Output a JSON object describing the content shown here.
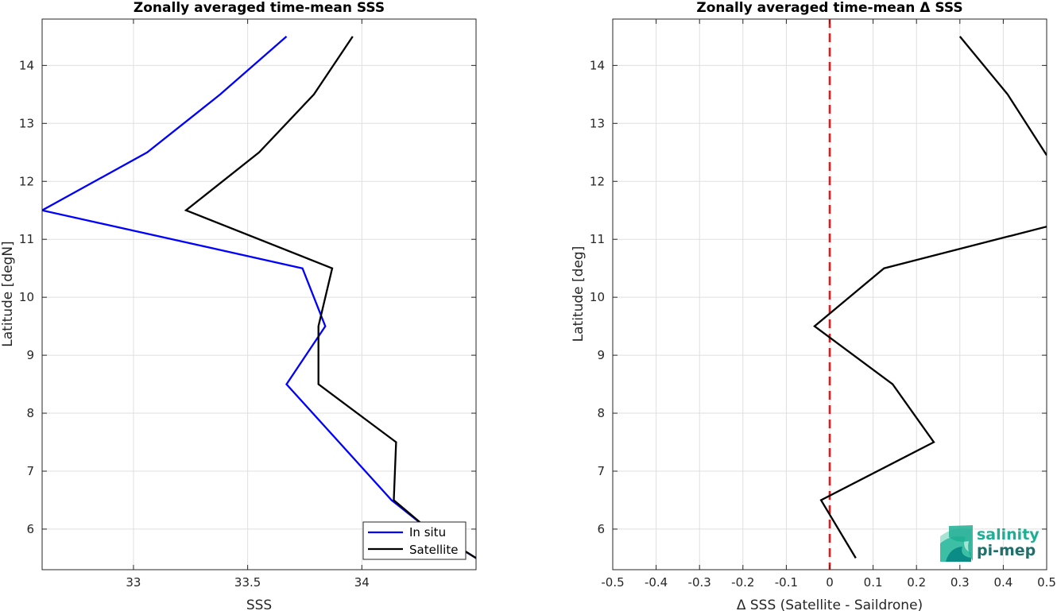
{
  "chart_data": [
    {
      "type": "line",
      "title": "Zonally averaged time-mean SSS",
      "xlabel": "SSS",
      "ylabel": "Latitude [degN]",
      "xlim": [
        32.6,
        34.5
      ],
      "ylim": [
        5.3,
        14.8
      ],
      "xticks": [
        33,
        33.5,
        34
      ],
      "xtick_labels": [
        "33",
        "33.5",
        "34"
      ],
      "yticks": [
        6,
        7,
        8,
        9,
        10,
        11,
        12,
        13,
        14
      ],
      "ytick_labels": [
        "6",
        "7",
        "8",
        "9",
        "10",
        "11",
        "12",
        "13",
        "14"
      ],
      "grid": true,
      "legend_position": "bottom-right",
      "series": [
        {
          "name": "In situ",
          "color": "#0000ff",
          "x": [
            34.5,
            34.29,
            34.13,
            33.9,
            33.67,
            33.84,
            33.74,
            32.6,
            33.06,
            33.38,
            33.67
          ],
          "y": [
            5.5,
            6.0,
            6.5,
            7.5,
            8.5,
            9.5,
            10.5,
            11.5,
            12.5,
            13.5,
            14.5
          ]
        },
        {
          "name": "Satellite",
          "color": "#000000",
          "x": [
            34.5,
            34.26,
            34.14,
            34.15,
            33.81,
            33.81,
            33.87,
            33.23,
            33.55,
            33.79,
            33.96
          ],
          "y": [
            5.5,
            6.1,
            6.5,
            7.5,
            8.5,
            9.5,
            10.5,
            11.5,
            12.5,
            13.5,
            14.5
          ]
        }
      ]
    },
    {
      "type": "line",
      "title": "Zonally averaged time-mean Δ SSS",
      "xlabel": "Δ SSS (Satellite - Saildrone)",
      "ylabel": "Latitude [deg]",
      "xlim": [
        -0.5,
        0.5
      ],
      "ylim": [
        5.3,
        14.8
      ],
      "xticks": [
        -0.5,
        -0.4,
        -0.3,
        -0.2,
        -0.1,
        0,
        0.1,
        0.2,
        0.3,
        0.4,
        0.5
      ],
      "xtick_labels": [
        "-0.5",
        "-0.4",
        "-0.3",
        "-0.2",
        "-0.1",
        "0",
        "0.1",
        "0.2",
        "0.3",
        "0.4",
        "0.5"
      ],
      "yticks": [
        6,
        7,
        8,
        9,
        10,
        11,
        12,
        13,
        14
      ],
      "ytick_labels": [
        "6",
        "7",
        "8",
        "9",
        "10",
        "11",
        "12",
        "13",
        "14"
      ],
      "grid": true,
      "reference_line": {
        "x": 0,
        "color": "#e41a1c",
        "style": "dashed"
      },
      "series": [
        {
          "color": "#000000",
          "segments": [
            {
              "x": [
                0.06,
                -0.02,
                0.24,
                0.145,
                -0.035,
                0.125,
                0.5
              ],
              "y": [
                5.5,
                6.5,
                7.5,
                8.5,
                9.5,
                10.5,
                11.22
              ]
            },
            {
              "x": [
                0.5,
                0.41,
                0.3
              ],
              "y": [
                12.45,
                13.5,
                14.5
              ]
            }
          ]
        }
      ]
    }
  ],
  "logo": {
    "line1": "salinity",
    "line2": "pi-mep",
    "colors": [
      "#3cbfa4",
      "#0b8c86",
      "#1f6f6b"
    ]
  }
}
